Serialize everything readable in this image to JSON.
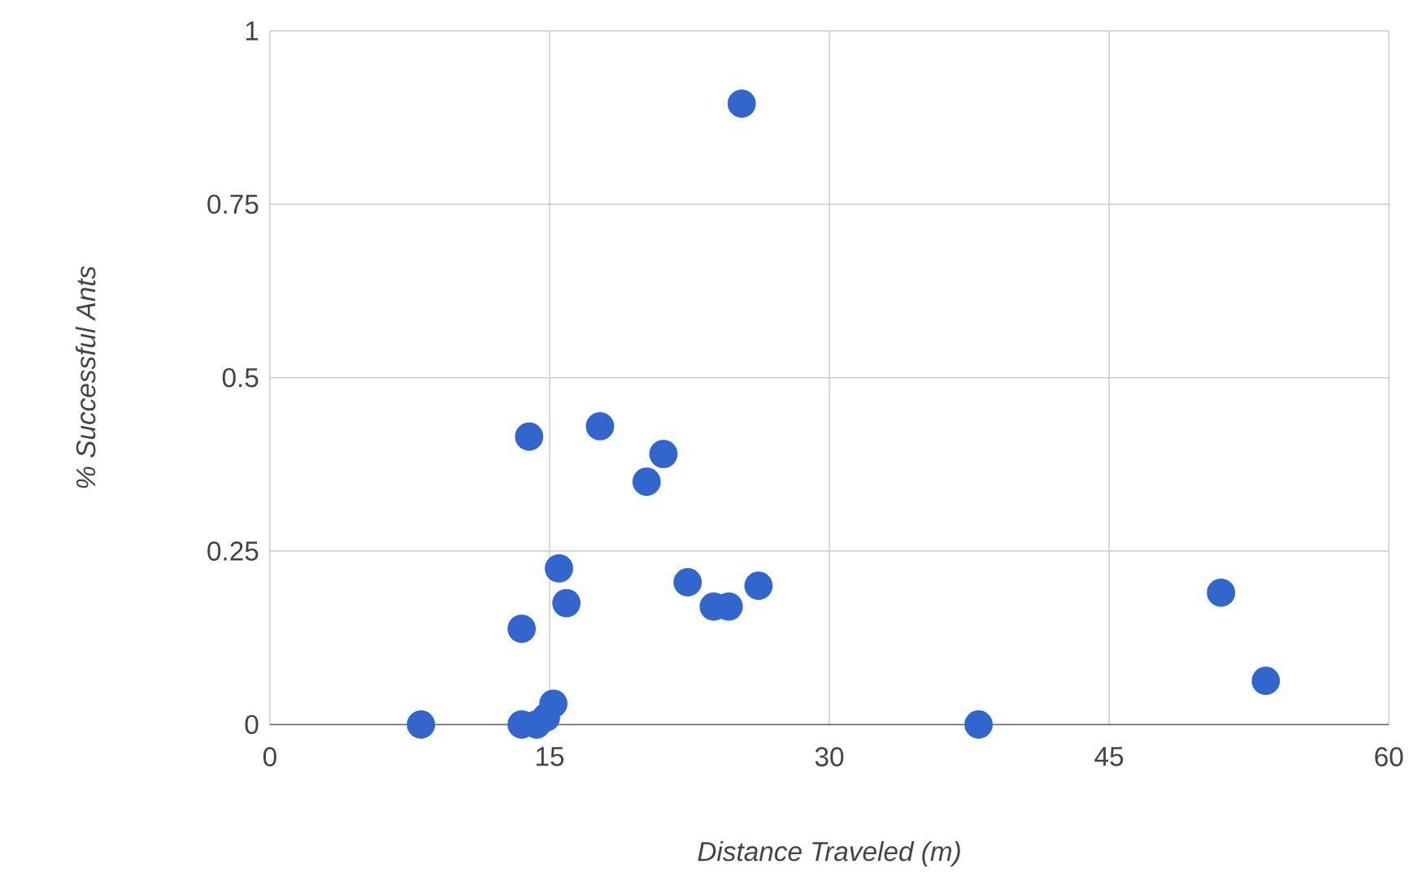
{
  "chart_data": {
    "type": "scatter",
    "xlabel": "Distance Traveled (m)",
    "ylabel": "% Successful Ants",
    "xlim": [
      0,
      60
    ],
    "ylim": [
      0,
      1
    ],
    "xticks": [
      0,
      15,
      30,
      45,
      60
    ],
    "yticks": [
      0,
      0.25,
      0.5,
      0.75,
      1
    ],
    "grid": true,
    "marker": "circle",
    "series": [
      {
        "color": "#3366cc",
        "x": [
          8.1,
          13.5,
          14.3,
          14.8,
          15.2,
          13.5,
          13.9,
          15.5,
          15.9,
          17.7,
          20.2,
          21.1,
          22.4,
          23.8,
          24.6,
          25.3,
          26.2,
          38.0,
          51.0,
          53.4
        ],
        "values": [
          0,
          0,
          0,
          0.01,
          0.03,
          0.138,
          0.415,
          0.225,
          0.175,
          0.43,
          0.35,
          0.39,
          0.205,
          0.17,
          0.17,
          0.895,
          0.2,
          0,
          0.19,
          0.063
        ]
      }
    ]
  }
}
